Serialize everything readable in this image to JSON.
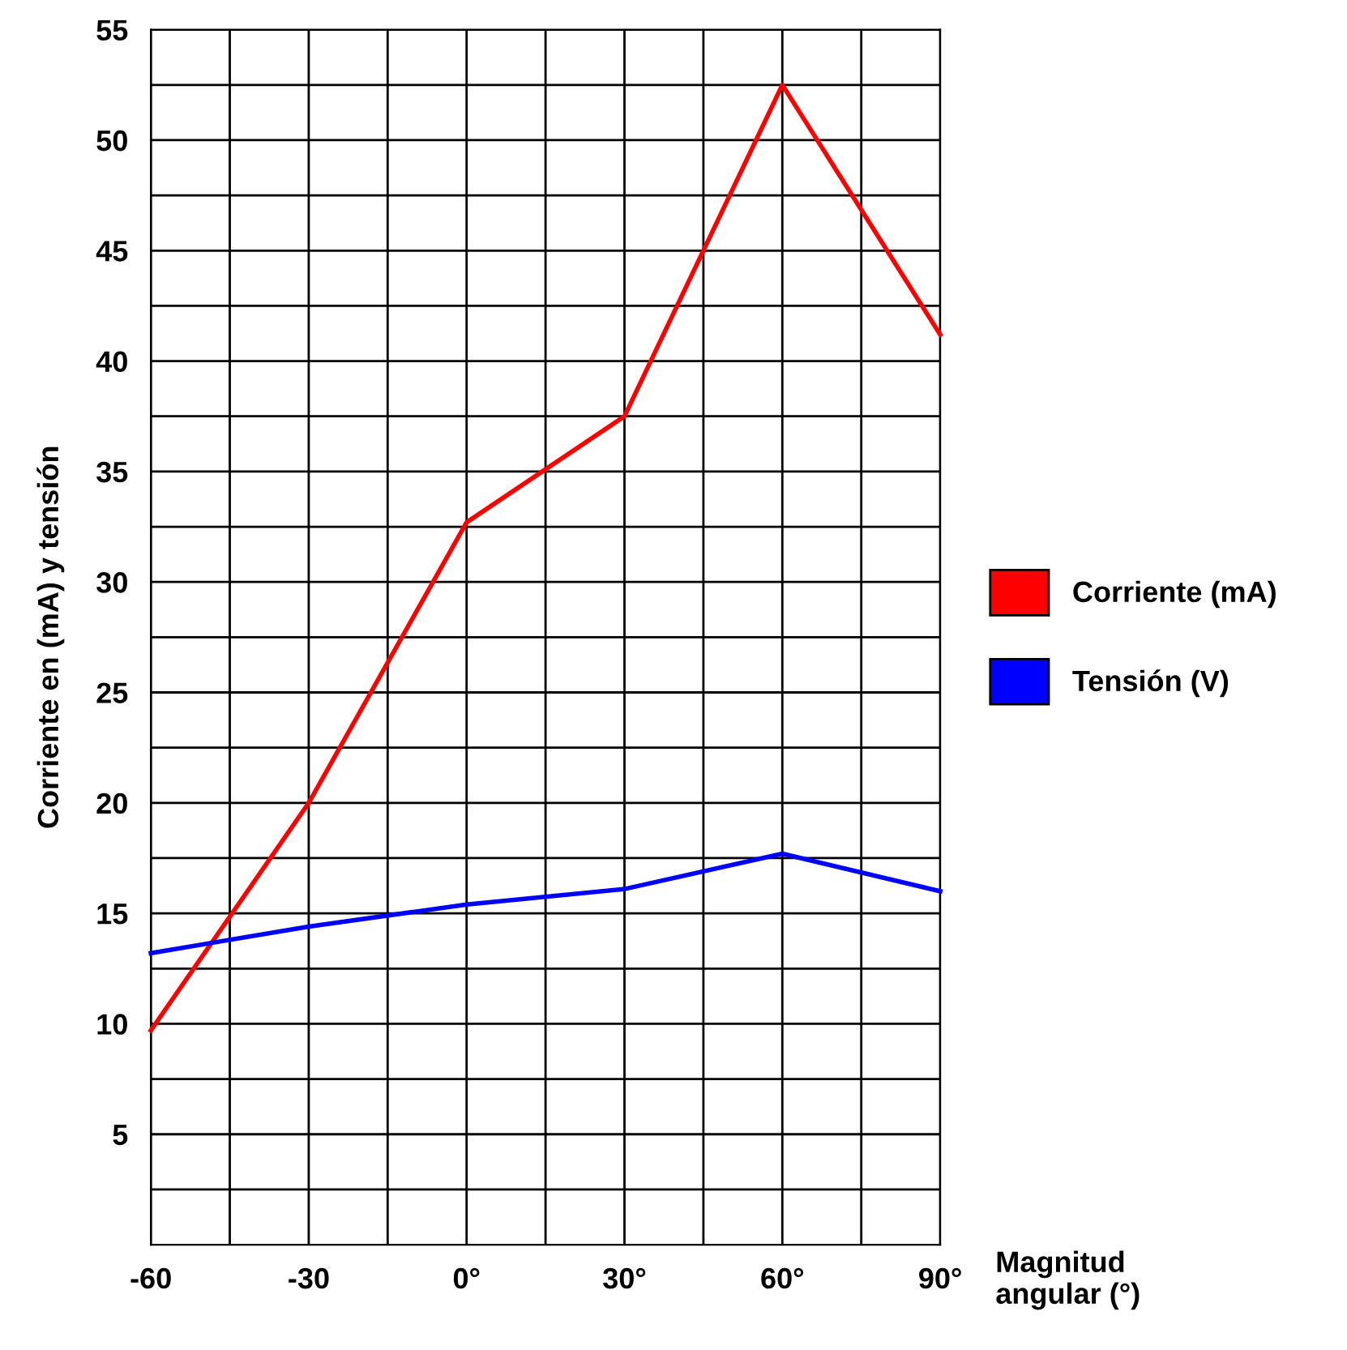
{
  "chart_data": {
    "type": "line",
    "ylabel": "Corriente en (mA) y tensión",
    "xlabel": "Magnitud\nangular (°)",
    "x": [
      -60,
      -30,
      0,
      30,
      60,
      90
    ],
    "series": [
      {
        "name": "Corriente (mA)",
        "color": "#ff0000",
        "values": [
          9.7,
          20,
          32.7,
          37.5,
          52.5,
          41.2
        ]
      },
      {
        "name": "Tensión (V)",
        "color": "#0000ff",
        "values": [
          13.2,
          14.4,
          15.4,
          16.1,
          17.7,
          16.0
        ]
      }
    ],
    "xlim": [
      -60,
      90
    ],
    "ylim": [
      0,
      55
    ],
    "xticks": [
      {
        "value": -60,
        "label": "-60"
      },
      {
        "value": -45,
        "label": null
      },
      {
        "value": -30,
        "label": "-30"
      },
      {
        "value": -15,
        "label": null
      },
      {
        "value": 0,
        "label": "0°"
      },
      {
        "value": 15,
        "label": null
      },
      {
        "value": 30,
        "label": "30°"
      },
      {
        "value": 45,
        "label": null
      },
      {
        "value": 60,
        "label": "60°"
      },
      {
        "value": 75,
        "label": null
      },
      {
        "value": 90,
        "label": "90°"
      }
    ],
    "yticks": [
      {
        "value": 2.5,
        "label": null
      },
      5,
      {
        "value": 7.5,
        "label": null
      },
      10,
      {
        "value": 12.5,
        "label": null
      },
      15,
      {
        "value": 17.5,
        "label": null
      },
      20,
      {
        "value": 22.5,
        "label": null
      },
      25,
      {
        "value": 27.5,
        "label": null
      },
      30,
      {
        "value": 32.5,
        "label": null
      },
      35,
      {
        "value": 37.5,
        "label": null
      },
      40,
      {
        "value": 42.5,
        "label": null
      },
      45,
      {
        "value": 47.5,
        "label": null
      },
      50,
      {
        "value": 52.5,
        "label": null
      },
      55
    ],
    "grid": true,
    "legend": "right",
    "marker": "none",
    "line_style": "solid"
  }
}
